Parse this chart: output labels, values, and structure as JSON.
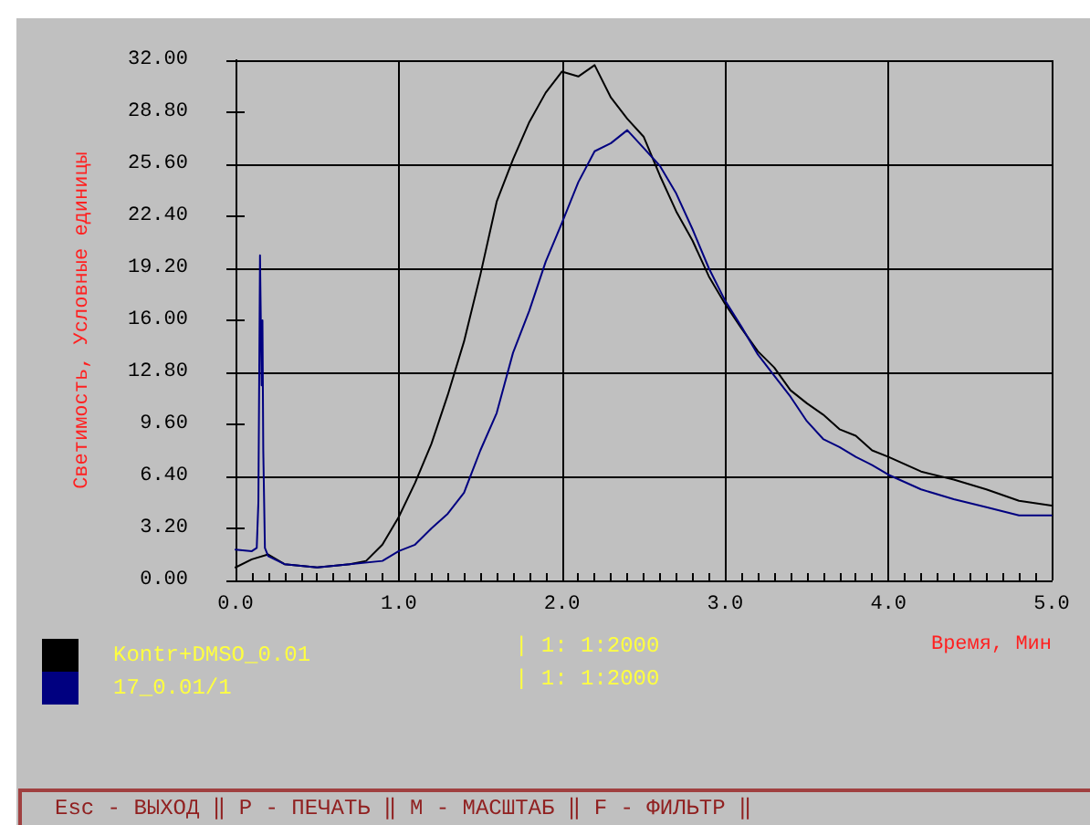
{
  "chart_data": {
    "type": "line",
    "xlabel": "Время, Мин",
    "ylabel": "Светимость, Условные единицы",
    "xlim": [
      0,
      5
    ],
    "ylim": [
      0,
      32
    ],
    "xticks": [
      {
        "value": 0,
        "label": "0.0"
      },
      {
        "value": 1,
        "label": "1.0"
      },
      {
        "value": 2,
        "label": "2.0"
      },
      {
        "value": 3,
        "label": "3.0"
      },
      {
        "value": 4,
        "label": "4.0"
      },
      {
        "value": 5,
        "label": "5.0"
      }
    ],
    "yticks": [
      {
        "value": 0,
        "label": "0.00"
      },
      {
        "value": 3.2,
        "label": "3.20"
      },
      {
        "value": 6.4,
        "label": "6.40"
      },
      {
        "value": 9.6,
        "label": "9.60"
      },
      {
        "value": 12.8,
        "label": "12.80"
      },
      {
        "value": 16,
        "label": "16.00"
      },
      {
        "value": 19.2,
        "label": "19.20"
      },
      {
        "value": 22.4,
        "label": "22.40"
      },
      {
        "value": 25.6,
        "label": "25.60"
      },
      {
        "value": 28.8,
        "label": "28.80"
      },
      {
        "value": 32,
        "label": "32.00"
      }
    ],
    "grid": true,
    "legend": "bottom left",
    "marker": "none",
    "line_style": "solid",
    "series": [
      {
        "name": "Kontr+DMSO_0.01",
        "color": "#000000",
        "x": [
          0,
          0.1,
          0.2,
          0.3,
          0.5,
          0.7,
          0.8,
          0.9,
          1.0,
          1.1,
          1.2,
          1.3,
          1.4,
          1.5,
          1.6,
          1.7,
          1.8,
          1.9,
          2.0,
          2.1,
          2.2,
          2.3,
          2.4,
          2.5,
          2.6,
          2.7,
          2.8,
          2.9,
          3.0,
          3.1,
          3.2,
          3.3,
          3.4,
          3.5,
          3.6,
          3.7,
          3.8,
          3.9,
          4.0,
          4.2,
          4.4,
          4.6,
          4.8,
          5.0
        ],
        "values": [
          0.8,
          1.3,
          1.6,
          1.0,
          0.8,
          1.0,
          1.2,
          2.2,
          3.9,
          6.0,
          8.4,
          11.4,
          14.7,
          18.8,
          23.3,
          25.9,
          28.2,
          30.0,
          31.3,
          31.0,
          31.7,
          29.7,
          28.4,
          27.3,
          24.9,
          22.7,
          20.9,
          18.7,
          17.0,
          15.5,
          14.1,
          13.1,
          11.7,
          10.9,
          10.2,
          9.3,
          8.9,
          8.0,
          7.6,
          6.7,
          6.2,
          5.6,
          4.9,
          4.6
        ]
      },
      {
        "name": "17_0.01/1",
        "color": "#000080",
        "x": [
          0,
          0.1,
          0.13,
          0.14,
          0.15,
          0.16,
          0.165,
          0.17,
          0.18,
          0.2,
          0.3,
          0.5,
          0.7,
          0.9,
          1.0,
          1.1,
          1.2,
          1.3,
          1.4,
          1.5,
          1.6,
          1.7,
          1.8,
          1.9,
          2.0,
          2.1,
          2.2,
          2.3,
          2.4,
          2.5,
          2.6,
          2.7,
          2.8,
          2.9,
          3.0,
          3.1,
          3.2,
          3.3,
          3.4,
          3.5,
          3.6,
          3.7,
          3.8,
          3.9,
          4.0,
          4.2,
          4.4,
          4.6,
          4.8,
          5.0
        ],
        "values": [
          1.9,
          1.8,
          2.0,
          4.8,
          20.0,
          12.0,
          16.0,
          8.0,
          2.0,
          1.5,
          1.0,
          0.8,
          1.0,
          1.2,
          1.8,
          2.2,
          3.2,
          4.1,
          5.4,
          8.0,
          10.3,
          14.0,
          16.6,
          19.6,
          22.0,
          24.5,
          26.4,
          26.9,
          27.7,
          26.6,
          25.5,
          23.8,
          21.6,
          19.2,
          17.2,
          15.6,
          13.9,
          12.6,
          11.3,
          9.8,
          8.7,
          8.2,
          7.6,
          7.1,
          6.5,
          5.6,
          5.0,
          4.5,
          4.0,
          4.0
        ]
      }
    ],
    "annotations": [
      "| 1: 1:2000",
      "| 1: 1:2000",
      "Esc - ВЫХОД ‖ P - ПЕЧАТЬ ‖ M - МАСШТАБ ‖ F - ФИЛЬТР ‖"
    ]
  }
}
